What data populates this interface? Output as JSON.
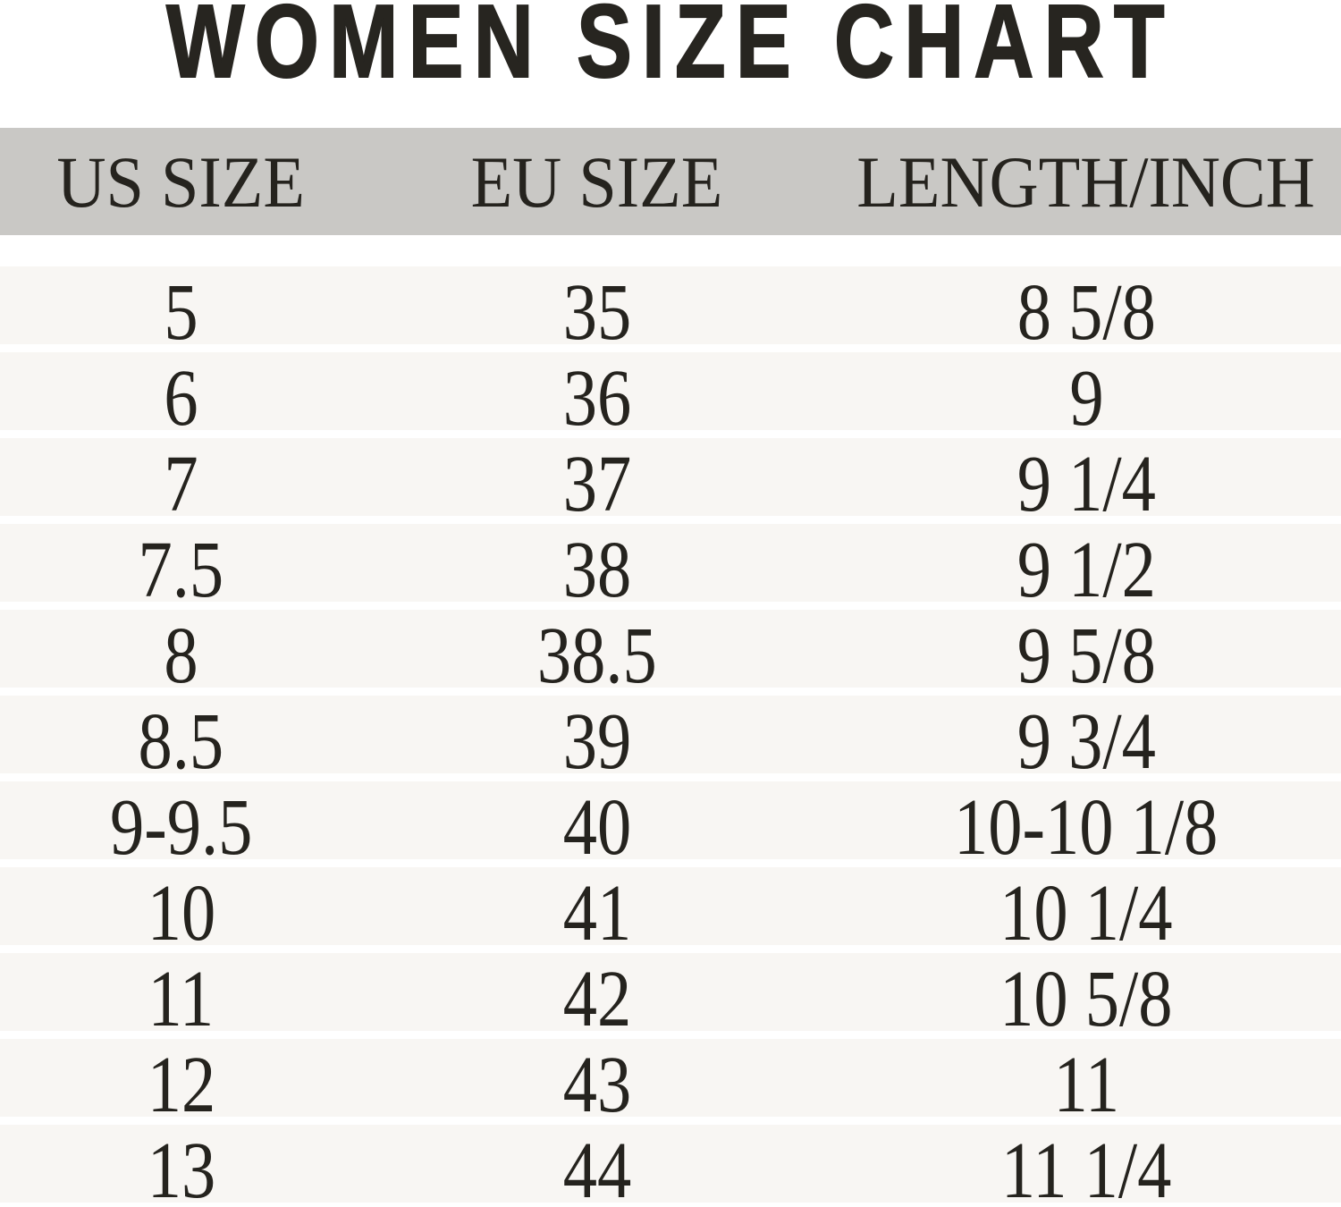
{
  "title": "WOMEN SIZE CHART",
  "colors": {
    "page_bg": "#ffffff",
    "header_bg": "#c9c8c5",
    "row_bg": "#f8f6f3",
    "title_color": "#272520",
    "text_color": "#25231e"
  },
  "chart_data": {
    "type": "table",
    "title": "WOMEN SIZE CHART",
    "columns": [
      "US SIZE",
      "EU SIZE",
      "LENGTH/INCH"
    ],
    "rows": [
      [
        "5",
        "35",
        "8 5/8"
      ],
      [
        "6",
        "36",
        "9"
      ],
      [
        "7",
        "37",
        "9 1/4"
      ],
      [
        "7.5",
        "38",
        "9 1/2"
      ],
      [
        "8",
        "38.5",
        "9 5/8"
      ],
      [
        "8.5",
        "39",
        "9 3/4"
      ],
      [
        "9-9.5",
        "40",
        "10-10 1/8"
      ],
      [
        "10",
        "41",
        "10 1/4"
      ],
      [
        "11",
        "42",
        "10 5/8"
      ],
      [
        "12",
        "43",
        "11"
      ],
      [
        "13",
        "44",
        "11 1/4"
      ]
    ]
  }
}
